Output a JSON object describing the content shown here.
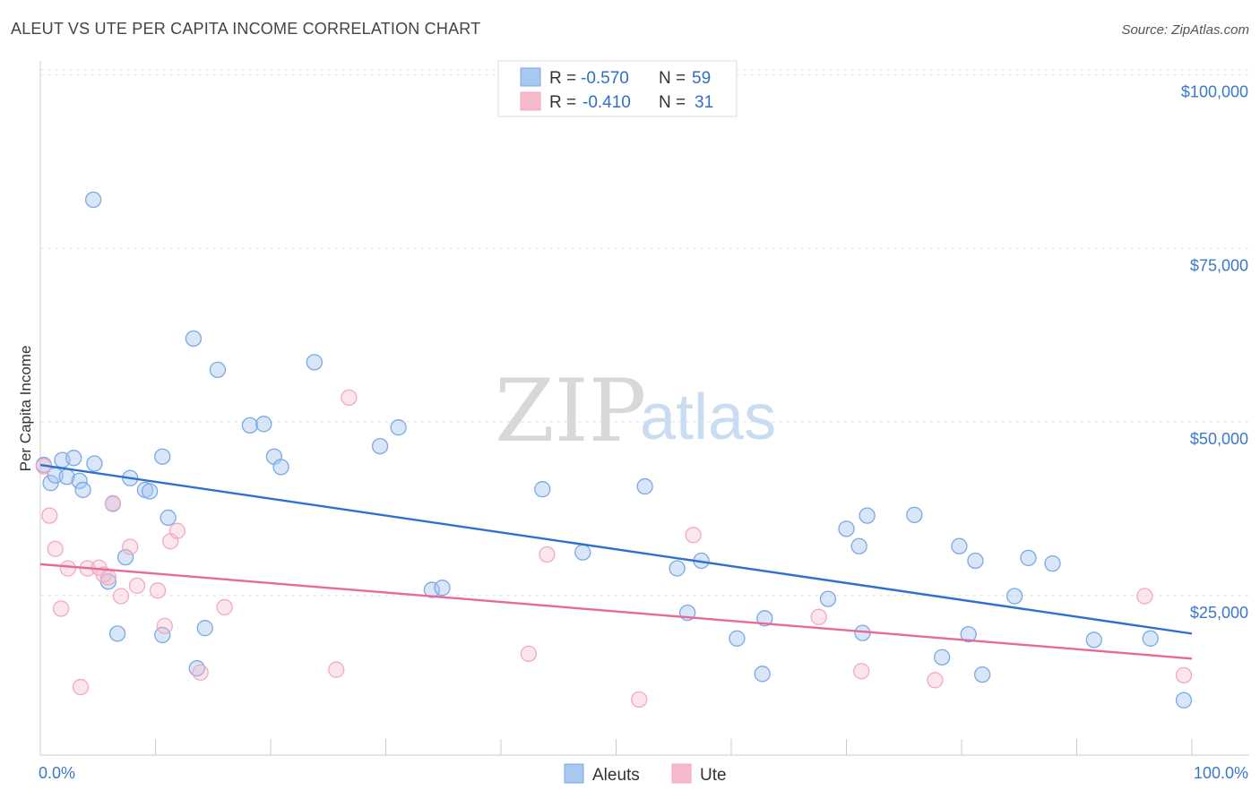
{
  "header": {
    "title": "ALEUT VS UTE PER CAPITA INCOME CORRELATION CHART",
    "source": "Source: ZipAtlas.com"
  },
  "watermark": {
    "zip": "ZIP",
    "atlas": "atlas"
  },
  "legend_top": {
    "rows": [
      {
        "r_label": "R =",
        "r_value": "-0.570",
        "n_label": "N =",
        "n_value": "59",
        "color": "#a9c8ef"
      },
      {
        "r_label": "R =",
        "r_value": "-0.410",
        "n_label": "N =",
        "n_value": "31",
        "color": "#f6b8cc"
      }
    ]
  },
  "legend_bottom": {
    "items": [
      {
        "label": "Aleuts",
        "color": "#a9c8ef"
      },
      {
        "label": "Ute",
        "color": "#f6b8cc"
      }
    ]
  },
  "chart_data": {
    "type": "scatter",
    "title": "ALEUT VS UTE PER CAPITA INCOME CORRELATION CHART",
    "ylabel": "Per Capita Income",
    "xlabel": "",
    "x_tick_labels": [
      "0.0%",
      "100.0%"
    ],
    "y_tick_labels": [
      "$25,000",
      "$50,000",
      "$75,000",
      "$100,000"
    ],
    "y_ticks": [
      25000,
      50000,
      75000,
      100000
    ],
    "xlim": [
      0,
      100
    ],
    "ylim": [
      2000,
      102000
    ],
    "grid": "horizontal dashed",
    "legend_placement": "top-center and bottom-center",
    "series": [
      {
        "name": "Aleuts",
        "color": "#7aa9e6",
        "line_color": "#2f6fd0",
        "trend": {
          "x": [
            0,
            100
          ],
          "y": [
            43800,
            19500
          ]
        },
        "points": [
          [
            0.3,
            43800
          ],
          [
            0.9,
            41200
          ],
          [
            1.3,
            42300
          ],
          [
            1.9,
            44500
          ],
          [
            2.3,
            42100
          ],
          [
            2.9,
            44800
          ],
          [
            3.4,
            41500
          ],
          [
            3.7,
            40200
          ],
          [
            4.6,
            82000
          ],
          [
            4.7,
            44000
          ],
          [
            5.9,
            27000
          ],
          [
            6.3,
            38200
          ],
          [
            6.7,
            19500
          ],
          [
            7.4,
            30500
          ],
          [
            7.8,
            41900
          ],
          [
            9.1,
            40200
          ],
          [
            9.5,
            40000
          ],
          [
            10.6,
            19300
          ],
          [
            10.6,
            45000
          ],
          [
            11.1,
            36200
          ],
          [
            13.3,
            62000
          ],
          [
            13.6,
            14500
          ],
          [
            14.3,
            20300
          ],
          [
            15.4,
            57500
          ],
          [
            18.2,
            49500
          ],
          [
            19.4,
            49700
          ],
          [
            20.3,
            45000
          ],
          [
            20.9,
            43500
          ],
          [
            23.8,
            58600
          ],
          [
            29.5,
            46500
          ],
          [
            31.1,
            49200
          ],
          [
            34.0,
            25800
          ],
          [
            34.9,
            26100
          ],
          [
            43.6,
            40300
          ],
          [
            47.1,
            31200
          ],
          [
            52.5,
            40700
          ],
          [
            55.3,
            28900
          ],
          [
            56.2,
            22500
          ],
          [
            57.4,
            30000
          ],
          [
            60.5,
            18800
          ],
          [
            62.7,
            13700
          ],
          [
            62.9,
            21700
          ],
          [
            68.4,
            24500
          ],
          [
            70.0,
            34600
          ],
          [
            71.1,
            32100
          ],
          [
            71.4,
            19600
          ],
          [
            71.8,
            36500
          ],
          [
            75.9,
            36600
          ],
          [
            78.3,
            16100
          ],
          [
            79.8,
            32100
          ],
          [
            80.6,
            19400
          ],
          [
            81.2,
            30000
          ],
          [
            81.8,
            13600
          ],
          [
            84.6,
            24900
          ],
          [
            85.8,
            30400
          ],
          [
            87.9,
            29600
          ],
          [
            91.5,
            18600
          ],
          [
            96.4,
            18800
          ],
          [
            99.3,
            9900
          ]
        ]
      },
      {
        "name": "Ute",
        "color": "#f4a9c0",
        "line_color": "#e76997",
        "trend": {
          "x": [
            0,
            100
          ],
          "y": [
            29500,
            15900
          ]
        },
        "points": [
          [
            0.3,
            43600
          ],
          [
            0.8,
            36500
          ],
          [
            1.3,
            31700
          ],
          [
            1.8,
            23100
          ],
          [
            2.4,
            28900
          ],
          [
            3.5,
            11800
          ],
          [
            4.1,
            28900
          ],
          [
            5.1,
            29000
          ],
          [
            5.5,
            28000
          ],
          [
            5.9,
            27600
          ],
          [
            6.3,
            38300
          ],
          [
            7.0,
            24900
          ],
          [
            7.8,
            32000
          ],
          [
            8.4,
            26400
          ],
          [
            10.2,
            25700
          ],
          [
            10.8,
            20600
          ],
          [
            11.3,
            32800
          ],
          [
            11.9,
            34300
          ],
          [
            13.9,
            13900
          ],
          [
            16.0,
            23300
          ],
          [
            25.7,
            14300
          ],
          [
            26.8,
            53500
          ],
          [
            42.4,
            16600
          ],
          [
            44.0,
            30900
          ],
          [
            52.0,
            10000
          ],
          [
            56.7,
            33700
          ],
          [
            67.6,
            21900
          ],
          [
            71.3,
            14100
          ],
          [
            77.7,
            12800
          ],
          [
            95.9,
            24900
          ],
          [
            99.3,
            13500
          ]
        ]
      }
    ]
  }
}
